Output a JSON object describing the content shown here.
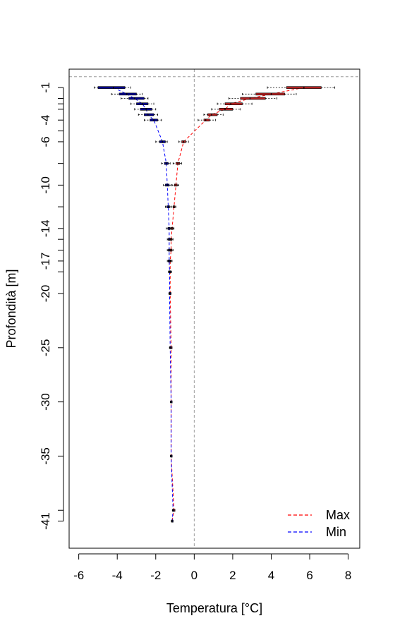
{
  "chart_data": {
    "type": "line",
    "xlabel": "Temperatura [°C]",
    "ylabel": "Profondità [m]",
    "xlim": [
      -6.5,
      8.6
    ],
    "ylim": [
      -43.5,
      0.7
    ],
    "x_ticks": [
      -6,
      -4,
      -2,
      0,
      2,
      4,
      6,
      8
    ],
    "y_ticks_labeled": [
      -1,
      -4,
      -6,
      -10,
      -14,
      -17,
      -20,
      -25,
      -30,
      -35,
      -41
    ],
    "y_ticks_minor": [
      -2,
      -2.5,
      -3,
      -5,
      -8,
      -12,
      -15,
      -16,
      -18,
      -40
    ],
    "reference_lines": {
      "x": 0,
      "y": 0
    },
    "legend": {
      "position": "bottom-right",
      "entries": [
        "Max",
        "Min"
      ]
    },
    "colors": {
      "Max": "#ff0000",
      "Min": "#0000ff",
      "box_max": "#b22222",
      "box_min": "#00008b"
    },
    "series": [
      {
        "name": "Max",
        "points": [
          {
            "depth": -1,
            "median": 5.7,
            "q1": 4.8,
            "q3": 6.6,
            "whisker_low": 3.8,
            "whisker_high": 7.3
          },
          {
            "depth": -1.6,
            "median": 4.0,
            "q1": 3.2,
            "q3": 4.7,
            "whisker_low": 2.5,
            "whisker_high": 5.3
          },
          {
            "depth": -2,
            "median": 2.9,
            "q1": 2.4,
            "q3": 3.7,
            "whisker_low": 1.8,
            "whisker_high": 4.3
          },
          {
            "depth": -2.5,
            "median": 1.9,
            "q1": 1.6,
            "q3": 2.5,
            "whisker_low": 1.2,
            "whisker_high": 3.0
          },
          {
            "depth": -3,
            "median": 1.6,
            "q1": 1.3,
            "q3": 2.0,
            "whisker_low": 0.9,
            "whisker_high": 2.4
          },
          {
            "depth": -3.5,
            "median": 0.9,
            "q1": 0.7,
            "q3": 1.2,
            "whisker_low": 0.5,
            "whisker_high": 1.5
          },
          {
            "depth": -4,
            "median": 0.6,
            "q1": 0.5,
            "q3": 0.8,
            "whisker_low": 0.2,
            "whisker_high": 1.1
          },
          {
            "depth": -6,
            "median": -0.55,
            "q1": -0.65,
            "q3": -0.45,
            "whisker_low": -0.8,
            "whisker_high": -0.3
          },
          {
            "depth": -8,
            "median": -0.85,
            "q1": -0.95,
            "q3": -0.75,
            "whisker_low": -1.1,
            "whisker_high": -0.65
          },
          {
            "depth": -10,
            "median": -0.95,
            "q1": -1.03,
            "q3": -0.88,
            "whisker_low": -1.15,
            "whisker_high": -0.8
          },
          {
            "depth": -12,
            "median": -1.05,
            "q1": -1.1,
            "q3": -1.0,
            "whisker_low": -1.2,
            "whisker_high": -0.95
          },
          {
            "depth": -14,
            "median": -1.15,
            "q1": -1.2,
            "q3": -1.1,
            "whisker_low": -1.25,
            "whisker_high": -1.05
          },
          {
            "depth": -15,
            "median": -1.2,
            "q1": -1.25,
            "q3": -1.15,
            "whisker_low": -1.3,
            "whisker_high": -1.1
          },
          {
            "depth": -16,
            "median": -1.2,
            "q1": -1.25,
            "q3": -1.15,
            "whisker_low": -1.3,
            "whisker_high": -1.1
          },
          {
            "depth": -17,
            "median": -1.25,
            "q1": -1.3,
            "q3": -1.2,
            "whisker_low": -1.35,
            "whisker_high": -1.15
          },
          {
            "depth": -18,
            "median": -1.25,
            "q1": -1.28,
            "q3": -1.22,
            "whisker_low": -1.32,
            "whisker_high": -1.18
          },
          {
            "depth": -20,
            "median": -1.25,
            "q1": -1.28,
            "q3": -1.22,
            "whisker_low": -1.3,
            "whisker_high": -1.2
          },
          {
            "depth": -25,
            "median": -1.2,
            "q1": -1.22,
            "q3": -1.18,
            "whisker_low": -1.24,
            "whisker_high": -1.16
          },
          {
            "depth": -30,
            "median": -1.2,
            "q1": -1.22,
            "q3": -1.18,
            "whisker_low": -1.24,
            "whisker_high": -1.16
          },
          {
            "depth": -35,
            "median": -1.2,
            "q1": -1.22,
            "q3": -1.18,
            "whisker_low": -1.24,
            "whisker_high": -1.16
          },
          {
            "depth": -40,
            "median": -1.05,
            "q1": -1.07,
            "q3": -1.03,
            "whisker_low": -1.09,
            "whisker_high": -1.01
          },
          {
            "depth": -41,
            "median": -1.15,
            "q1": -1.17,
            "q3": -1.13,
            "whisker_low": -1.19,
            "whisker_high": -1.11
          }
        ]
      },
      {
        "name": "Min",
        "points": [
          {
            "depth": -1,
            "median": -4.2,
            "q1": -5.0,
            "q3": -3.6,
            "whisker_low": -5.2,
            "whisker_high": -3.3
          },
          {
            "depth": -1.6,
            "median": -3.5,
            "q1": -3.9,
            "q3": -3.0,
            "whisker_low": -4.3,
            "whisker_high": -2.7
          },
          {
            "depth": -2,
            "median": -3.1,
            "q1": -3.4,
            "q3": -2.6,
            "whisker_low": -3.8,
            "whisker_high": -2.4
          },
          {
            "depth": -2.5,
            "median": -2.7,
            "q1": -3.0,
            "q3": -2.4,
            "whisker_low": -3.3,
            "whisker_high": -2.1
          },
          {
            "depth": -3,
            "median": -2.5,
            "q1": -2.8,
            "q3": -2.2,
            "whisker_low": -3.1,
            "whisker_high": -2.0
          },
          {
            "depth": -3.5,
            "median": -2.4,
            "q1": -2.6,
            "q3": -2.1,
            "whisker_low": -2.9,
            "whisker_high": -1.9
          },
          {
            "depth": -4,
            "median": -2.1,
            "q1": -2.3,
            "q3": -1.9,
            "whisker_low": -2.6,
            "whisker_high": -1.7
          },
          {
            "depth": -6,
            "median": -1.65,
            "q1": -1.8,
            "q3": -1.5,
            "whisker_low": -2.0,
            "whisker_high": -1.4
          },
          {
            "depth": -8,
            "median": -1.45,
            "q1": -1.55,
            "q3": -1.35,
            "whisker_low": -1.7,
            "whisker_high": -1.25
          },
          {
            "depth": -10,
            "median": -1.4,
            "q1": -1.5,
            "q3": -1.3,
            "whisker_low": -1.6,
            "whisker_high": -1.2
          },
          {
            "depth": -12,
            "median": -1.35,
            "q1": -1.42,
            "q3": -1.28,
            "whisker_low": -1.5,
            "whisker_high": -1.2
          },
          {
            "depth": -14,
            "median": -1.3,
            "q1": -1.37,
            "q3": -1.25,
            "whisker_low": -1.45,
            "whisker_high": -1.2
          },
          {
            "depth": -15,
            "median": -1.3,
            "q1": -1.35,
            "q3": -1.25,
            "whisker_low": -1.4,
            "whisker_high": -1.2
          },
          {
            "depth": -16,
            "median": -1.3,
            "q1": -1.35,
            "q3": -1.25,
            "whisker_low": -1.4,
            "whisker_high": -1.2
          },
          {
            "depth": -17,
            "median": -1.3,
            "q1": -1.35,
            "q3": -1.25,
            "whisker_low": -1.4,
            "whisker_high": -1.2
          },
          {
            "depth": -18,
            "median": -1.28,
            "q1": -1.31,
            "q3": -1.25,
            "whisker_low": -1.34,
            "whisker_high": -1.22
          },
          {
            "depth": -20,
            "median": -1.28,
            "q1": -1.3,
            "q3": -1.25,
            "whisker_low": -1.32,
            "whisker_high": -1.22
          },
          {
            "depth": -25,
            "median": -1.25,
            "q1": -1.27,
            "q3": -1.23,
            "whisker_low": -1.29,
            "whisker_high": -1.21
          },
          {
            "depth": -30,
            "median": -1.2,
            "q1": -1.22,
            "q3": -1.18,
            "whisker_low": -1.24,
            "whisker_high": -1.16
          },
          {
            "depth": -35,
            "median": -1.2,
            "q1": -1.22,
            "q3": -1.18,
            "whisker_low": -1.24,
            "whisker_high": -1.16
          },
          {
            "depth": -40,
            "median": -1.1,
            "q1": -1.12,
            "q3": -1.08,
            "whisker_low": -1.14,
            "whisker_high": -1.06
          },
          {
            "depth": -41,
            "median": -1.15,
            "q1": -1.17,
            "q3": -1.13,
            "whisker_low": -1.19,
            "whisker_high": -1.11
          }
        ]
      }
    ]
  }
}
